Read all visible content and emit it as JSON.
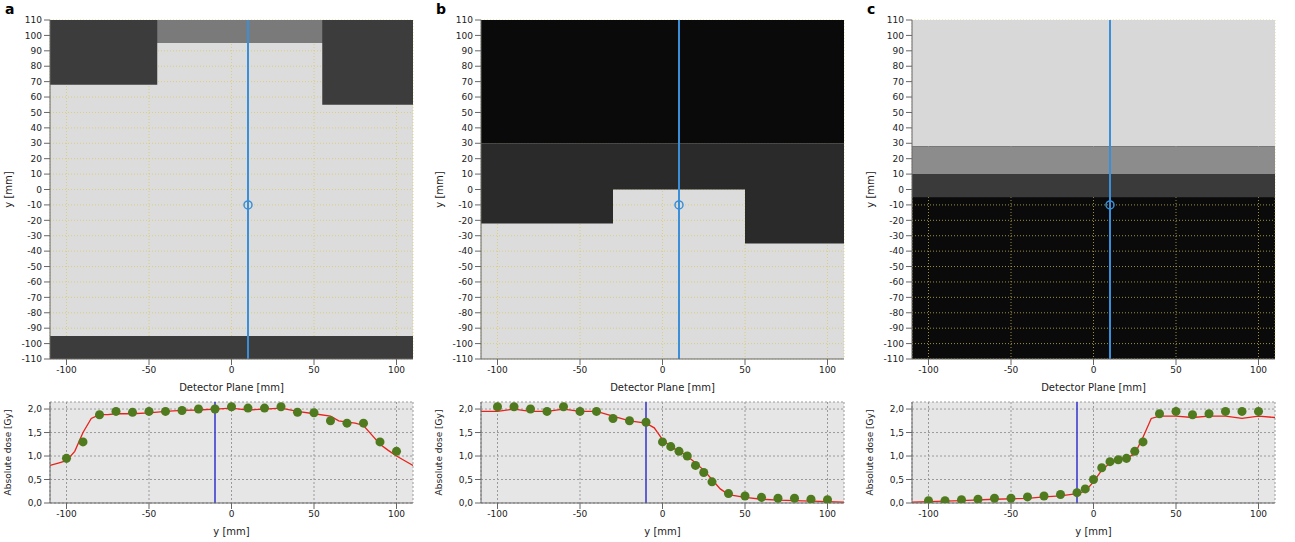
{
  "chart_data": [
    {
      "panel": "a",
      "type": "map",
      "x_label": "Detector Plane [mm]",
      "y_label": "y [mm]",
      "xlim": [
        -110,
        110
      ],
      "ylim": [
        -110,
        110
      ],
      "xticks": [
        -100,
        -50,
        0,
        50,
        100
      ],
      "yticks": [
        -110,
        -100,
        -90,
        -80,
        -70,
        -60,
        -50,
        -40,
        -30,
        -20,
        -10,
        0,
        10,
        20,
        30,
        40,
        50,
        60,
        70,
        80,
        90,
        100,
        110
      ],
      "grid": true,
      "color": "#dcdcdc",
      "regions": [
        {
          "x": [
            -110,
            110
          ],
          "y": [
            95,
            110
          ],
          "color": "#7a7a7a"
        },
        {
          "x": [
            -110,
            -45
          ],
          "y": [
            68,
            110
          ],
          "color": "#3c3c3c"
        },
        {
          "x": [
            55,
            110
          ],
          "y": [
            55,
            110
          ],
          "color": "#3c3c3c"
        },
        {
          "x": [
            -110,
            110
          ],
          "y": [
            -110,
            -95
          ],
          "color": "#3c3c3c"
        }
      ],
      "profile_x": 10,
      "point": [
        10,
        -10
      ]
    },
    {
      "panel": "b",
      "type": "map",
      "x_label": "Detector Plane [mm]",
      "y_label": "y [mm]",
      "xlim": [
        -110,
        110
      ],
      "ylim": [
        -110,
        110
      ],
      "xticks": [
        -100,
        -50,
        0,
        50,
        100
      ],
      "yticks": [
        -110,
        -100,
        -90,
        -80,
        -70,
        -60,
        -50,
        -40,
        -30,
        -20,
        -10,
        0,
        10,
        20,
        30,
        40,
        50,
        60,
        70,
        80,
        90,
        100,
        110
      ],
      "grid": true,
      "color": "#dcdcdc",
      "regions": [
        {
          "x": [
            -110,
            110
          ],
          "y": [
            30,
            110
          ],
          "color": "#0a0a0a"
        },
        {
          "x": [
            -110,
            -30
          ],
          "y": [
            -22,
            30
          ],
          "color": "#2a2a2a"
        },
        {
          "x": [
            -30,
            50
          ],
          "y": [
            0,
            30
          ],
          "color": "#2a2a2a"
        },
        {
          "x": [
            50,
            110
          ],
          "y": [
            -35,
            30
          ],
          "color": "#2a2a2a"
        }
      ],
      "profile_x": 10,
      "point": [
        10,
        -10
      ]
    },
    {
      "panel": "c",
      "type": "map",
      "x_label": "Detector Plane [mm]",
      "y_label": "y [mm]",
      "xlim": [
        -110,
        110
      ],
      "ylim": [
        -110,
        110
      ],
      "xticks": [
        -100,
        -50,
        0,
        50,
        100
      ],
      "yticks": [
        -110,
        -100,
        -90,
        -80,
        -70,
        -60,
        -50,
        -40,
        -30,
        -20,
        -10,
        0,
        10,
        20,
        30,
        40,
        50,
        60,
        70,
        80,
        90,
        100,
        110
      ],
      "grid": true,
      "color": "#0a0a0a",
      "regions": [
        {
          "x": [
            -110,
            110
          ],
          "y": [
            28,
            110
          ],
          "color": "#d8d8d8"
        },
        {
          "x": [
            -110,
            110
          ],
          "y": [
            10,
            28
          ],
          "color": "#8c8c8c"
        },
        {
          "x": [
            -110,
            110
          ],
          "y": [
            -5,
            10
          ],
          "color": "#3a3a3a"
        }
      ],
      "profile_x": 10,
      "point": [
        10,
        -10
      ]
    },
    {
      "type": "line",
      "x_label": "y [mm]",
      "y_label": "Absolute dose [Gy]",
      "xlim": [
        -110,
        110
      ],
      "ylim": [
        0,
        2.15
      ],
      "xticks": [
        -100,
        -50,
        0,
        50,
        100
      ],
      "yticks": [
        {
          "value": 0,
          "label": "0,0"
        },
        {
          "value": 0.5,
          "label": "0,5"
        },
        {
          "value": 1,
          "label": "1,0"
        },
        {
          "value": 1.5,
          "label": "1,5"
        },
        {
          "value": 2,
          "label": "2,0"
        }
      ],
      "grid": true,
      "cursor": -10,
      "series": [
        {
          "type": "line",
          "color": "#e8231b",
          "x": [
            -110,
            -105,
            -100,
            -95,
            -90,
            -85,
            -80,
            -75,
            -70,
            -60,
            -50,
            -40,
            -30,
            -20,
            -10,
            0,
            5,
            10,
            20,
            30,
            40,
            50,
            60,
            65,
            70,
            75,
            80,
            85,
            90,
            95,
            100,
            105,
            110
          ],
          "values": [
            0.8,
            0.85,
            0.9,
            1.1,
            1.5,
            1.8,
            1.88,
            1.88,
            1.9,
            1.9,
            1.92,
            1.95,
            1.97,
            1.98,
            2.0,
            2.02,
            2.0,
            1.98,
            2.0,
            2.02,
            1.95,
            1.9,
            1.85,
            1.75,
            1.72,
            1.7,
            1.65,
            1.45,
            1.25,
            1.12,
            1.0,
            0.9,
            0.8
          ]
        },
        {
          "type": "scatter",
          "color": "#4f7a1e",
          "marker": "circle",
          "x": [
            -100,
            -90,
            -80,
            -70,
            -60,
            -50,
            -40,
            -30,
            -20,
            -10,
            0,
            10,
            20,
            30,
            40,
            50,
            60,
            70,
            80,
            90,
            100
          ],
          "values": [
            0.95,
            1.3,
            1.88,
            1.95,
            1.93,
            1.95,
            1.95,
            1.97,
            2.0,
            2.0,
            2.05,
            2.02,
            2.02,
            2.05,
            1.93,
            1.92,
            1.75,
            1.7,
            1.7,
            1.3,
            1.1
          ]
        }
      ]
    },
    {
      "type": "line",
      "x_label": "y [mm]",
      "y_label": "Absolute dose [Gy]",
      "xlim": [
        -110,
        110
      ],
      "ylim": [
        0,
        2.15
      ],
      "xticks": [
        -100,
        -50,
        0,
        50,
        100
      ],
      "yticks": [
        {
          "value": 0,
          "label": "0,0"
        },
        {
          "value": 0.5,
          "label": "0,5"
        },
        {
          "value": 1,
          "label": "1,0"
        },
        {
          "value": 1.5,
          "label": "1,5"
        },
        {
          "value": 2,
          "label": "2,0"
        }
      ],
      "grid": true,
      "cursor": -10,
      "series": [
        {
          "type": "line",
          "color": "#e8231b",
          "x": [
            -110,
            -100,
            -90,
            -80,
            -70,
            -60,
            -50,
            -40,
            -30,
            -20,
            -10,
            -5,
            0,
            5,
            10,
            15,
            20,
            25,
            30,
            35,
            40,
            50,
            60,
            70,
            80,
            90,
            100,
            110
          ],
          "values": [
            1.95,
            1.95,
            2.0,
            1.95,
            1.95,
            2.0,
            1.95,
            1.95,
            1.85,
            1.75,
            1.7,
            1.6,
            1.35,
            1.2,
            1.1,
            1.0,
            0.85,
            0.7,
            0.5,
            0.3,
            0.18,
            0.12,
            0.08,
            0.06,
            0.05,
            0.04,
            0.03,
            0.02
          ]
        },
        {
          "type": "scatter",
          "color": "#4f7a1e",
          "marker": "circle",
          "x": [
            -100,
            -90,
            -80,
            -70,
            -60,
            -50,
            -40,
            -30,
            -20,
            -10,
            0,
            5,
            10,
            15,
            20,
            25,
            30,
            40,
            50,
            60,
            70,
            80,
            90,
            100
          ],
          "values": [
            2.05,
            2.05,
            2.0,
            1.95,
            2.05,
            1.95,
            1.95,
            1.8,
            1.75,
            1.72,
            1.3,
            1.2,
            1.1,
            1.0,
            0.8,
            0.65,
            0.45,
            0.2,
            0.15,
            0.12,
            0.1,
            0.1,
            0.08,
            0.07
          ]
        }
      ]
    },
    {
      "type": "line",
      "x_label": "y [mm]",
      "y_label": "Absolute dose [Gy]",
      "xlim": [
        -110,
        110
      ],
      "ylim": [
        0,
        2.15
      ],
      "xticks": [
        -100,
        -50,
        0,
        50,
        100
      ],
      "yticks": [
        {
          "value": 0,
          "label": "0,0"
        },
        {
          "value": 0.5,
          "label": "0,5"
        },
        {
          "value": 1,
          "label": "1,0"
        },
        {
          "value": 1.5,
          "label": "1,5"
        },
        {
          "value": 2,
          "label": "2,0"
        }
      ],
      "grid": true,
      "cursor": -10,
      "series": [
        {
          "type": "line",
          "color": "#e8231b",
          "x": [
            -110,
            -100,
            -80,
            -60,
            -40,
            -30,
            -20,
            -10,
            -5,
            0,
            5,
            10,
            15,
            20,
            25,
            30,
            35,
            40,
            50,
            60,
            70,
            80,
            90,
            100,
            110
          ],
          "values": [
            0.02,
            0.03,
            0.05,
            0.08,
            0.1,
            0.13,
            0.15,
            0.2,
            0.25,
            0.45,
            0.7,
            0.85,
            0.9,
            0.95,
            1.05,
            1.4,
            1.8,
            1.85,
            1.85,
            1.82,
            1.85,
            1.85,
            1.8,
            1.85,
            1.82
          ]
        },
        {
          "type": "scatter",
          "color": "#4f7a1e",
          "marker": "circle",
          "x": [
            -100,
            -90,
            -80,
            -70,
            -60,
            -50,
            -40,
            -30,
            -20,
            -10,
            -5,
            0,
            5,
            10,
            15,
            20,
            25,
            30,
            40,
            50,
            60,
            70,
            80,
            90,
            100
          ],
          "values": [
            0.05,
            0.05,
            0.07,
            0.08,
            0.1,
            0.1,
            0.13,
            0.15,
            0.18,
            0.22,
            0.3,
            0.5,
            0.75,
            0.88,
            0.92,
            0.95,
            1.1,
            1.3,
            1.9,
            1.95,
            1.88,
            1.9,
            1.95,
            1.95,
            1.95
          ]
        }
      ]
    }
  ]
}
